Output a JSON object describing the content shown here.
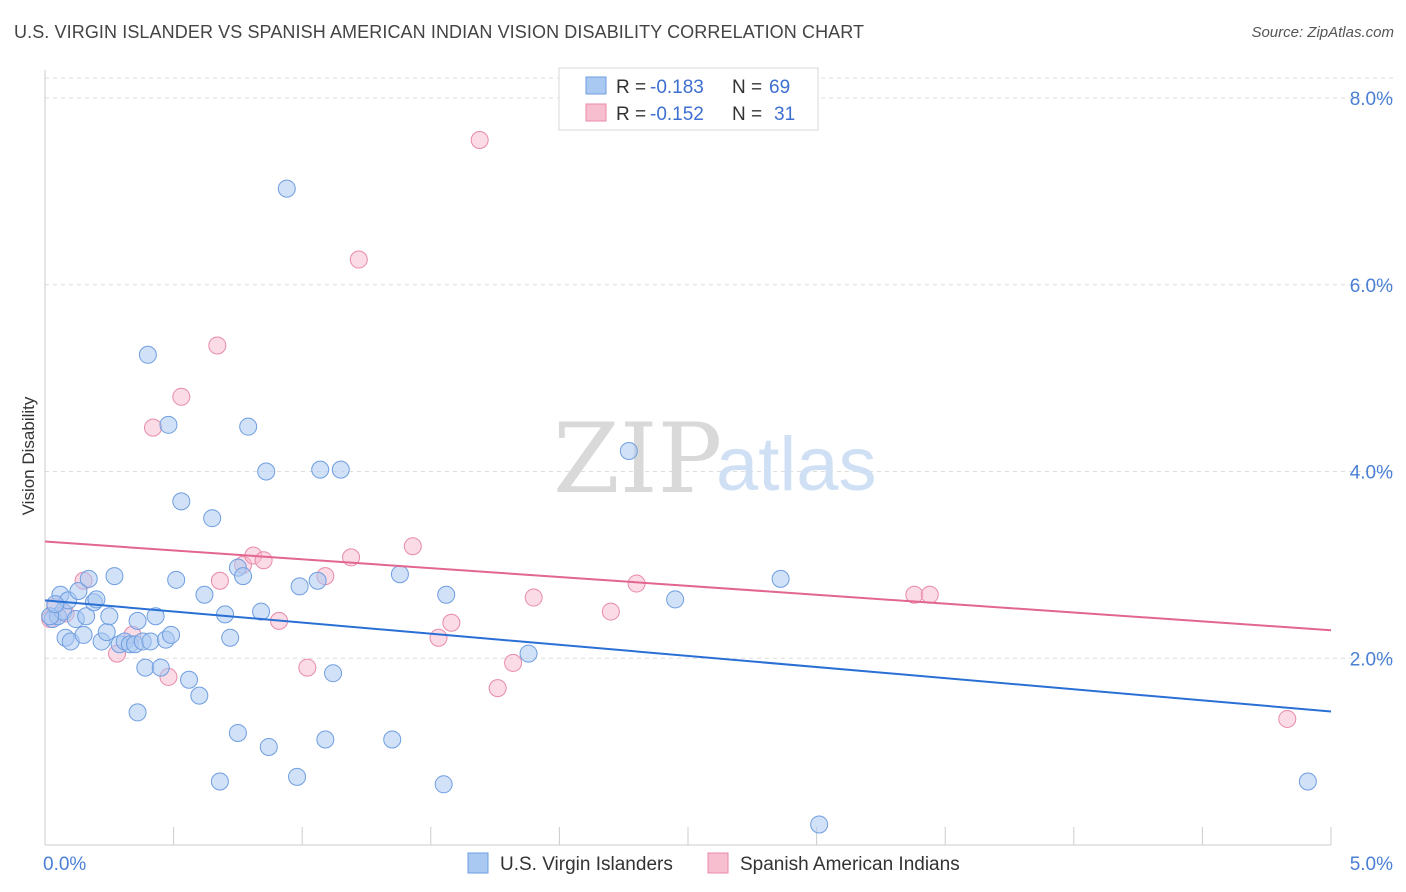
{
  "title": "U.S. VIRGIN ISLANDER VS SPANISH AMERICAN INDIAN VISION DISABILITY CORRELATION CHART",
  "source": "Source: ZipAtlas.com",
  "watermark": {
    "zip": "ZIP",
    "atlas": "atlas"
  },
  "colors": {
    "blue_fill": "#a9c8f2",
    "blue_stroke": "#6f9ee0",
    "blue_line": "#2a6fd4",
    "pink_fill": "#f7bed0",
    "pink_stroke": "#e88aaa",
    "pink_line": "#e2668f",
    "tick_text": "#4a7fd4",
    "grid": "#dddddd"
  },
  "legend_top": [
    {
      "series": "blue",
      "r_label": "R =",
      "r_value": "-0.183",
      "n_label": "N =",
      "n_value": "69"
    },
    {
      "series": "pink",
      "r_label": "R =",
      "r_value": "-0.152",
      "n_label": "N =",
      "n_value": "31"
    }
  ],
  "chart_data": {
    "type": "scatter",
    "title": "U.S. VIRGIN ISLANDER VS SPANISH AMERICAN INDIAN VISION DISABILITY CORRELATION CHART",
    "xlabel": "",
    "ylabel": "Vision Disability",
    "xlim": [
      0,
      5
    ],
    "ylim": [
      0,
      8.3
    ],
    "x_tick_labels": [
      {
        "value": 0,
        "label": "0.0%"
      },
      {
        "value": 5,
        "label": "5.0%"
      }
    ],
    "y_tick_labels": [
      {
        "value": 2,
        "label": "2.0%"
      },
      {
        "value": 4,
        "label": "4.0%"
      },
      {
        "value": 6,
        "label": "6.0%"
      },
      {
        "value": 8,
        "label": "8.0%"
      }
    ],
    "grid": "horizontal dashed",
    "legend_position": "bottom",
    "series": [
      {
        "name": "U.S. Virgin Islanders",
        "color": "blue",
        "trend": {
          "x": [
            0,
            5
          ],
          "y": [
            2.62,
            1.43
          ]
        },
        "points": [
          [
            0.03,
            2.42
          ],
          [
            0.05,
            2.45
          ],
          [
            0.06,
            2.68
          ],
          [
            0.07,
            2.5
          ],
          [
            0.08,
            2.22
          ],
          [
            0.09,
            2.62
          ],
          [
            0.1,
            2.18
          ],
          [
            0.12,
            2.42
          ],
          [
            0.13,
            2.72
          ],
          [
            0.15,
            2.25
          ],
          [
            0.16,
            2.45
          ],
          [
            0.17,
            2.85
          ],
          [
            0.19,
            2.6
          ],
          [
            0.2,
            2.63
          ],
          [
            0.22,
            2.18
          ],
          [
            0.24,
            2.28
          ],
          [
            0.25,
            2.45
          ],
          [
            0.27,
            2.88
          ],
          [
            0.29,
            2.15
          ],
          [
            0.31,
            2.18
          ],
          [
            0.33,
            2.15
          ],
          [
            0.35,
            2.15
          ],
          [
            0.36,
            2.4
          ],
          [
            0.38,
            2.18
          ],
          [
            0.39,
            1.9
          ],
          [
            0.41,
            2.18
          ],
          [
            0.43,
            2.45
          ],
          [
            0.45,
            1.9
          ],
          [
            0.47,
            2.2
          ],
          [
            0.49,
            2.25
          ],
          [
            0.51,
            2.84
          ],
          [
            0.53,
            3.68
          ],
          [
            0.56,
            1.77
          ],
          [
            0.6,
            1.6
          ],
          [
            0.62,
            2.68
          ],
          [
            0.65,
            3.5
          ],
          [
            0.7,
            2.47
          ],
          [
            0.72,
            2.22
          ],
          [
            0.75,
            2.97
          ],
          [
            0.77,
            2.88
          ],
          [
            0.79,
            4.48
          ],
          [
            0.84,
            2.5
          ],
          [
            0.99,
            2.77
          ],
          [
            1.06,
            2.83
          ],
          [
            1.07,
            4.02
          ],
          [
            1.12,
            1.84
          ],
          [
            0.4,
            5.25
          ],
          [
            0.48,
            4.5
          ],
          [
            0.94,
            7.03
          ],
          [
            0.86,
            4.0
          ],
          [
            0.36,
            1.42
          ],
          [
            0.75,
            1.2
          ],
          [
            0.87,
            1.05
          ],
          [
            1.09,
            1.13
          ],
          [
            1.38,
            2.9
          ],
          [
            1.35,
            1.13
          ],
          [
            0.68,
            0.68
          ],
          [
            0.98,
            0.73
          ],
          [
            1.55,
            0.65
          ],
          [
            1.56,
            2.68
          ],
          [
            1.88,
            2.05
          ],
          [
            2.27,
            4.22
          ],
          [
            2.45,
            2.63
          ],
          [
            2.86,
            2.85
          ],
          [
            3.01,
            0.22
          ],
          [
            4.91,
            0.68
          ],
          [
            1.15,
            4.02
          ],
          [
            0.02,
            2.45
          ],
          [
            0.04,
            2.58
          ]
        ]
      },
      {
        "name": "Spanish American Indians",
        "color": "pink",
        "trend": {
          "x": [
            0,
            5
          ],
          "y": [
            3.25,
            2.3
          ]
        },
        "points": [
          [
            0.02,
            2.42
          ],
          [
            0.04,
            2.55
          ],
          [
            0.08,
            2.48
          ],
          [
            0.15,
            2.83
          ],
          [
            0.28,
            2.05
          ],
          [
            0.34,
            2.25
          ],
          [
            0.42,
            4.47
          ],
          [
            0.48,
            1.8
          ],
          [
            0.53,
            4.8
          ],
          [
            0.68,
            2.83
          ],
          [
            0.67,
            5.35
          ],
          [
            0.77,
            3.0
          ],
          [
            0.81,
            3.1
          ],
          [
            0.85,
            3.05
          ],
          [
            0.91,
            2.4
          ],
          [
            1.02,
            1.9
          ],
          [
            1.09,
            2.88
          ],
          [
            1.19,
            3.08
          ],
          [
            1.22,
            6.27
          ],
          [
            1.43,
            3.2
          ],
          [
            1.53,
            2.22
          ],
          [
            1.58,
            2.38
          ],
          [
            1.76,
            1.68
          ],
          [
            1.82,
            1.95
          ],
          [
            1.9,
            2.65
          ],
          [
            2.2,
            2.5
          ],
          [
            2.3,
            2.8
          ],
          [
            1.69,
            7.55
          ],
          [
            3.38,
            2.68
          ],
          [
            3.44,
            2.68
          ],
          [
            4.83,
            1.35
          ]
        ]
      }
    ]
  },
  "legend_bottom": [
    {
      "series": "blue",
      "label": "U.S. Virgin Islanders"
    },
    {
      "series": "pink",
      "label": "Spanish American Indians"
    }
  ]
}
